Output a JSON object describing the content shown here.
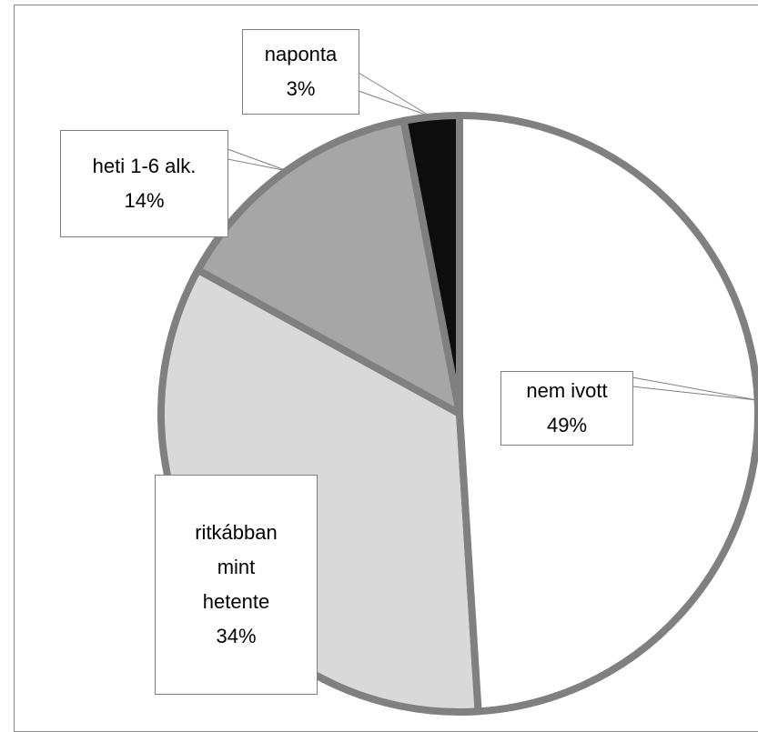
{
  "chart_data": {
    "type": "pie",
    "categories": [
      "nem ivott",
      "ritkábban mint hetente",
      "heti 1-6 alk.",
      "naponta"
    ],
    "values": [
      49,
      34,
      14,
      3
    ],
    "value_labels": [
      "49%",
      "34%",
      "14%",
      "3%"
    ],
    "colors": [
      "#ffffff",
      "#d9d9d9",
      "#a6a6a6",
      "#0d0d0d"
    ]
  }
}
